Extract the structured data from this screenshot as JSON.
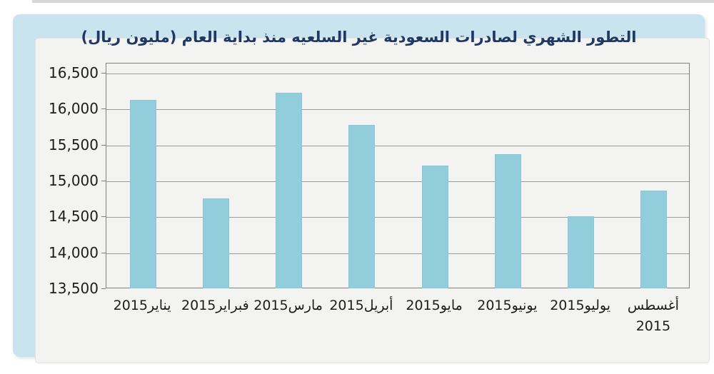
{
  "chart_data": {
    "type": "bar",
    "title": "التطور الشهري لصادرات السعودية غير السلعيه منذ بداية العام (مليون ريال)",
    "unit_label": "مليون ريال",
    "rtl": true,
    "categories": [
      "يناير2015",
      "فبراير2015",
      "مارس2015",
      "أبريل2015",
      "مايو2015",
      "يونيو2015",
      "يوليو2015",
      "أغسطس 2015"
    ],
    "values": [
      16130,
      14760,
      16230,
      15790,
      15220,
      15380,
      14510,
      14870
    ],
    "xlabel": "",
    "ylabel": "",
    "ylim": [
      13500,
      16500
    ],
    "ytick_step": 500,
    "ytick_labels_desc": [
      "16,500",
      "16,000",
      "15,500",
      "15,000",
      "14,500",
      "14,000",
      "13,500"
    ],
    "grid": true,
    "legend": false,
    "bar_color": "#92cddc",
    "gridline_color": "#9c9c9c",
    "plot_border_color": "#808080",
    "frame_color": "#c9e3ef",
    "background_color": "#f3f3f1",
    "title_color": "#1f3864"
  }
}
